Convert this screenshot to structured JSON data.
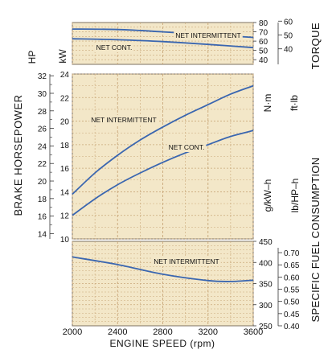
{
  "chart_data": {
    "type": "line",
    "x_axis": {
      "label": "ENGINE SPEED (rpm)",
      "range": [
        2000,
        3600
      ],
      "ticks": [
        2000,
        2400,
        2800,
        3200,
        3600
      ]
    },
    "colors": {
      "curve": "#3a66b0",
      "panel": "#f3e7c8",
      "grid": "#c9a87a",
      "frame": "#7d7060"
    },
    "panels": [
      {
        "name": "torque",
        "left_label": "",
        "left_unit": "kW",
        "left_ticks": [],
        "right_label": "TORQUE",
        "right_units": [
          "N·m",
          "ft·lb"
        ],
        "right_axis_1": {
          "unit": "N·m",
          "ticks": [
            40,
            50,
            60,
            70,
            80
          ],
          "range": [
            35,
            80
          ]
        },
        "right_axis_2": {
          "unit": "ft·lb",
          "ticks": [
            40,
            50,
            60
          ],
          "range": [
            28.8,
            59.0
          ]
        },
        "series": [
          {
            "name": "NET INTERMITTENT",
            "x": [
              2000,
              2400,
              2800,
              3200,
              3600
            ],
            "y": [
              73,
              72.5,
              70,
              67,
              64
            ]
          },
          {
            "name": "NET CONT.",
            "x": [
              2000,
              2400,
              2800,
              3200,
              3600
            ],
            "y": [
              62.5,
              61.5,
              59.5,
              56.5,
              53
            ]
          }
        ]
      },
      {
        "name": "power",
        "left_label": "BRAKE HORSEPOWER",
        "left_unit": "HP",
        "left_axis": {
          "unit": "HP",
          "ticks": [
            14,
            16,
            18,
            20,
            22,
            24,
            26,
            28,
            30,
            32
          ],
          "range": [
            13.4,
            32.2
          ]
        },
        "right_axis": {
          "unit": "kW",
          "ticks": [
            10,
            12,
            14,
            16,
            18,
            20,
            22,
            24
          ],
          "range": [
            10,
            24
          ]
        },
        "series": [
          {
            "name": "NET INTERMITTENT",
            "x": [
              2000,
              2200,
              2400,
              2600,
              2800,
              3000,
              3200,
              3400,
              3600
            ],
            "y": [
              13.8,
              15.6,
              17.1,
              18.4,
              19.5,
              20.5,
              21.4,
              22.3,
              23.0
            ]
          },
          {
            "name": "NET CONT.",
            "x": [
              2000,
              2200,
              2400,
              2600,
              2800,
              3000,
              3200,
              3400,
              3600
            ],
            "y": [
              12.0,
              13.4,
              14.6,
              15.6,
              16.5,
              17.3,
              18.0,
              18.7,
              19.2
            ]
          }
        ]
      },
      {
        "name": "sfc",
        "left_label": "SPECIFIC FUEL CONSUMPTION",
        "left_unit": "g/kW-h",
        "left_axis": {
          "unit": "g/kW-h",
          "ticks": [
            250,
            300,
            350,
            400,
            450
          ],
          "range": [
            250,
            450
          ]
        },
        "right_units": [
          "lb/HP-h"
        ],
        "right_axis": {
          "unit": "lb/HP-h",
          "ticks": [
            0.4,
            0.45,
            0.5,
            0.55,
            0.6,
            0.65,
            0.7
          ],
          "range": [
            0.4,
            0.72
          ]
        },
        "series": [
          {
            "name": "NET INTERMITTENT",
            "x": [
              2000,
              2400,
              2800,
              3200,
              3400,
              3600
            ],
            "y": [
              413,
              395,
              372,
              357,
              355,
              358
            ]
          }
        ]
      }
    ]
  },
  "labels": {
    "x_axis_title": "ENGINE SPEED (rpm)",
    "hp_unit": "HP",
    "kw_unit": "kW",
    "brake_hp": "BRAKE HORSEPOWER",
    "torque": "TORQUE",
    "nm_unit": "N·m",
    "ftlb_unit": "ft·lb",
    "gkwh_unit": "g/kW–h",
    "lbhph_unit": "lb/HP–h",
    "sfc": "SPECIFIC FUEL CONSUMPTION"
  }
}
